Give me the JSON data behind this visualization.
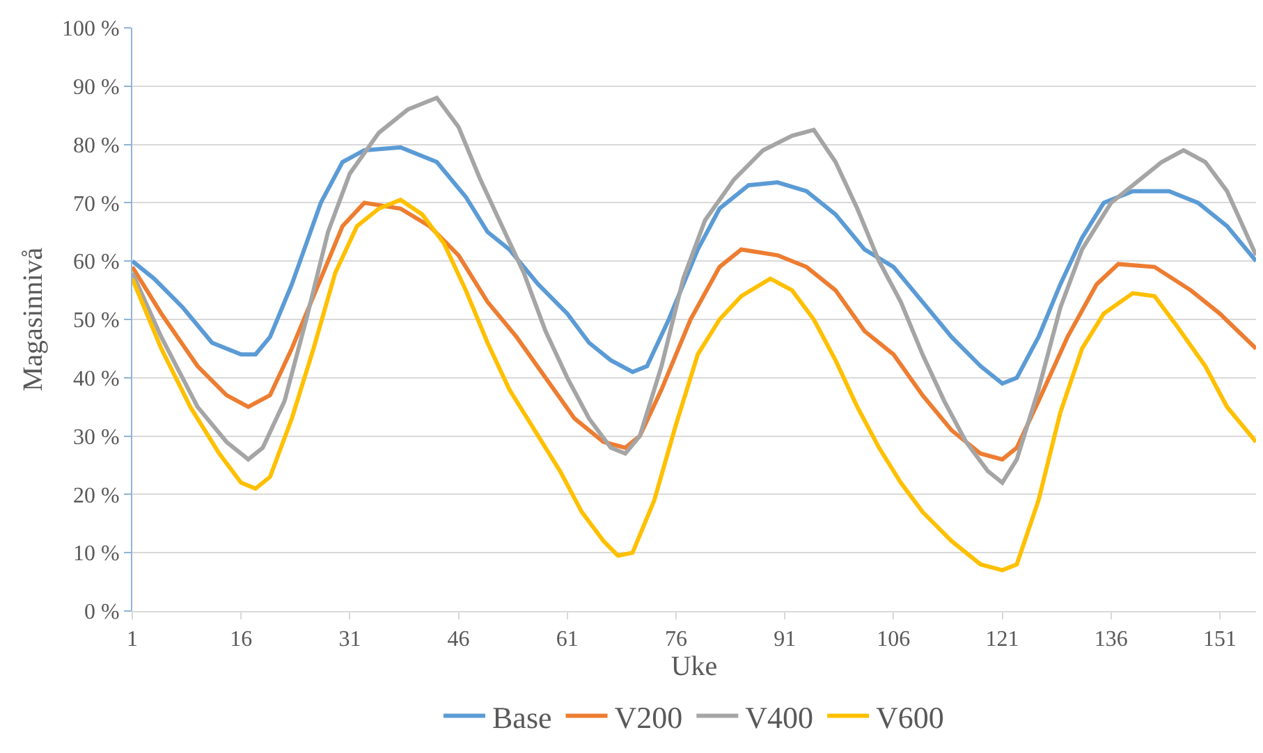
{
  "chart_data": {
    "type": "line",
    "xlabel": "Uke",
    "ylabel": "Magasinnivå",
    "xlim": [
      1,
      156
    ],
    "xticks": [
      1,
      16,
      31,
      46,
      61,
      76,
      91,
      106,
      121,
      136,
      151
    ],
    "ylim": [
      0,
      100
    ],
    "yticks": [
      {
        "value": 0,
        "label": "0 %"
      },
      {
        "value": 10,
        "label": "10 %"
      },
      {
        "value": 20,
        "label": "20 %"
      },
      {
        "value": 30,
        "label": "30 %"
      },
      {
        "value": 40,
        "label": "40 %"
      },
      {
        "value": 50,
        "label": "50 %"
      },
      {
        "value": 60,
        "label": "60 %"
      },
      {
        "value": 70,
        "label": "70 %"
      },
      {
        "value": 80,
        "label": "80 %"
      },
      {
        "value": 90,
        "label": "90 %"
      },
      {
        "value": 100,
        "label": "100 %"
      }
    ],
    "grid": "y",
    "legend": "bottom",
    "marker": "none",
    "line_style": "solid",
    "series": [
      {
        "name": "Base",
        "color": "#5b9bd5",
        "x": [
          1,
          4,
          8,
          12,
          16,
          18,
          20,
          23,
          27,
          30,
          33,
          38,
          43,
          47,
          50,
          53,
          57,
          61,
          64,
          67,
          70,
          72,
          75,
          79,
          82,
          86,
          90,
          94,
          98,
          102,
          106,
          110,
          114,
          118,
          121,
          123,
          126,
          129,
          132,
          135,
          139,
          144,
          148,
          152,
          156
        ],
        "values": [
          60,
          57,
          52,
          46,
          44,
          44,
          47,
          56,
          70,
          77,
          79,
          79.5,
          77,
          71,
          65,
          62,
          56,
          51,
          46,
          43,
          41,
          42,
          50,
          62,
          69,
          73,
          73.5,
          72,
          68,
          62,
          59,
          53,
          47,
          42,
          39,
          40,
          47,
          56,
          64,
          70,
          72,
          72,
          70,
          66,
          60
        ]
      },
      {
        "name": "V200",
        "color": "#ed7d31",
        "x": [
          1,
          5,
          10,
          14,
          17,
          20,
          23,
          27,
          30,
          33,
          38,
          42,
          46,
          50,
          54,
          58,
          62,
          66,
          69,
          71,
          74,
          78,
          82,
          85,
          90,
          94,
          98,
          102,
          106,
          110,
          114,
          118,
          121,
          123,
          126,
          130,
          134,
          137,
          142,
          147,
          151,
          156
        ],
        "values": [
          59,
          51,
          42,
          37,
          35,
          37,
          45,
          57,
          66,
          70,
          69,
          66,
          61,
          53,
          47,
          40,
          33,
          29,
          28,
          30,
          38,
          50,
          59,
          62,
          61,
          59,
          55,
          48,
          44,
          37,
          31,
          27,
          26,
          28,
          36,
          47,
          56,
          59.5,
          59,
          55,
          51,
          45
        ]
      },
      {
        "name": "V400",
        "color": "#a5a5a5",
        "x": [
          1,
          5,
          10,
          14,
          17,
          19,
          22,
          25,
          28,
          31,
          35,
          39,
          43,
          46,
          49,
          52,
          55,
          58,
          61,
          64,
          67,
          69,
          71,
          74,
          77,
          80,
          84,
          88,
          92,
          95,
          98,
          101,
          104,
          107,
          110,
          113,
          116,
          119,
          121,
          123,
          126,
          129,
          132,
          136,
          140,
          143,
          146,
          149,
          152,
          156
        ],
        "values": [
          58,
          47,
          35,
          29,
          26,
          28,
          36,
          50,
          65,
          75,
          82,
          86,
          88,
          83,
          74,
          66,
          58,
          48,
          40,
          33,
          28,
          27,
          30,
          42,
          57,
          67,
          74,
          79,
          81.5,
          82.5,
          77,
          69,
          60,
          53,
          44,
          36,
          29,
          24,
          22,
          26,
          38,
          52,
          62,
          70,
          74,
          77,
          79,
          77,
          72,
          61
        ]
      },
      {
        "name": "V600",
        "color": "#ffc000",
        "x": [
          1,
          5,
          9,
          13,
          16,
          18,
          20,
          23,
          26,
          29,
          32,
          35,
          38,
          41,
          44,
          47,
          50,
          53,
          57,
          60,
          63,
          66,
          68,
          70,
          73,
          76,
          79,
          82,
          85,
          89,
          92,
          95,
          98,
          101,
          104,
          107,
          110,
          114,
          118,
          121,
          123,
          126,
          129,
          132,
          135,
          139,
          142,
          145,
          149,
          152,
          156
        ],
        "values": [
          57,
          45,
          35,
          27,
          22,
          21,
          23,
          33,
          45,
          58,
          66,
          69,
          70.5,
          68,
          63,
          55,
          46,
          38,
          30,
          24,
          17,
          12,
          9.5,
          10,
          19,
          32,
          44,
          50,
          54,
          57,
          55,
          50,
          43,
          35,
          28,
          22,
          17,
          12,
          8,
          7,
          8,
          19,
          34,
          45,
          51,
          54.5,
          54,
          49,
          42,
          35,
          29
        ]
      }
    ]
  }
}
